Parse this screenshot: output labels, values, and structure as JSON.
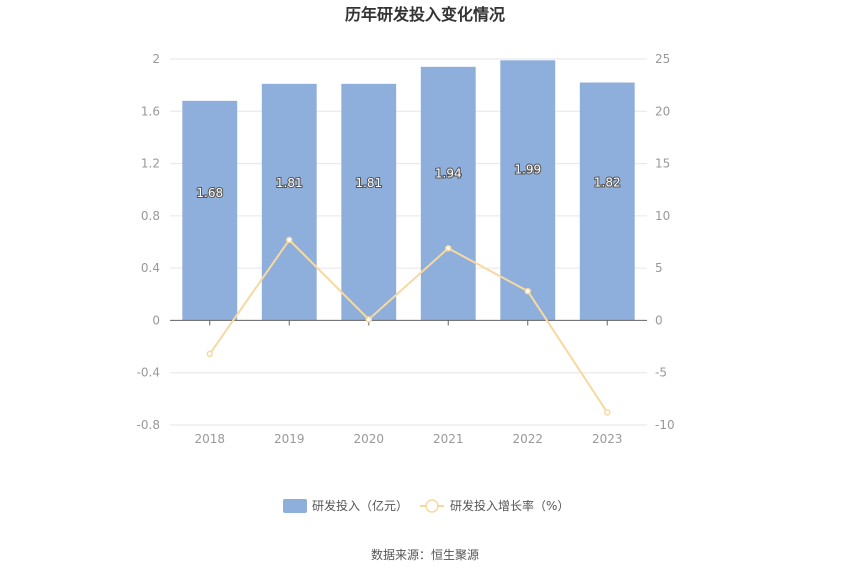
{
  "chart_data": {
    "type": "bar",
    "title": "历年研发投入变化情况",
    "categories": [
      "2018",
      "2019",
      "2020",
      "2021",
      "2022",
      "2023"
    ],
    "series": [
      {
        "name": "研发投入（亿元）",
        "type": "bar",
        "axis": "left",
        "color": "#8eaedb",
        "values": [
          1.68,
          1.81,
          1.81,
          1.94,
          1.99,
          1.82
        ],
        "labels": [
          "1.68",
          "1.81",
          "1.81",
          "1.94",
          "1.99",
          "1.82"
        ]
      },
      {
        "name": "研发投入增长率（%）",
        "type": "line",
        "axis": "right",
        "color": "#f7d9a0",
        "values": [
          -3.2,
          7.7,
          0.1,
          6.9,
          2.8,
          -8.8
        ]
      }
    ],
    "y_left": {
      "min": -0.8,
      "max": 2,
      "ticks": [
        "-0.8",
        "-0.4",
        "0",
        "0.4",
        "0.8",
        "1.2",
        "1.6",
        "2"
      ]
    },
    "y_right": {
      "min": -10,
      "max": 25,
      "ticks": [
        "-10",
        "-5",
        "0",
        "5",
        "10",
        "15",
        "20",
        "25"
      ]
    },
    "grid": true,
    "legend_position": "bottom"
  },
  "source_text": "数据来源：恒生聚源"
}
